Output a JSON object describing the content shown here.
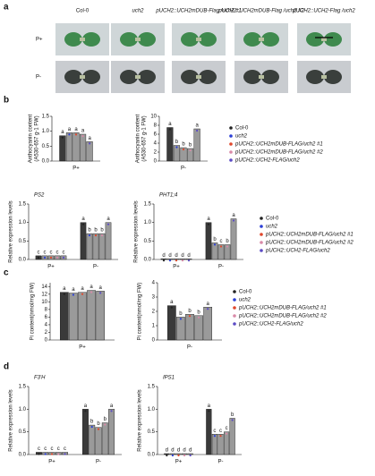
{
  "panel_labels": [
    "a",
    "b",
    "c",
    "d"
  ],
  "photos": {
    "columns": [
      "Col-0",
      "uch2",
      "pUCH2::UCH2mDUB-Flag /uch2 #1",
      "pUCH2::UCH2mDUB-Flag /uch2 #2",
      "pUCH2::UCH2-Flag /uch2"
    ],
    "rows": [
      "P+",
      "P-"
    ]
  },
  "chart_data": [
    {
      "type": "bar",
      "ylabel": [
        "Anthocyanin content",
        "(A530-657 g-1 FW)"
      ],
      "categories": [
        "P+"
      ],
      "ylim": [
        0,
        1.5
      ],
      "yticks": [
        {
          "value": 0,
          "label": "0.0"
        },
        0.5,
        {
          "value": 1,
          "label": "1.0"
        },
        1.5
      ],
      "series": [
        {
          "color": "#222222",
          "values": [
            0.85
          ],
          "letters": [
            "a"
          ]
        },
        {
          "color": "#2b3fd6",
          "values": [
            0.95
          ],
          "letters": [
            "a"
          ]
        },
        {
          "color": "#e0472b",
          "values": [
            0.95
          ],
          "letters": [
            "a"
          ]
        },
        {
          "color": "#d98aa8",
          "values": [
            0.9
          ],
          "letters": [
            "a"
          ]
        },
        {
          "color": "#5b4bc4",
          "values": [
            0.65
          ],
          "letters": [
            "a"
          ]
        }
      ]
    },
    {
      "type": "bar",
      "ylabel": [
        "Anthocyanin content",
        "(A530-657 g-1 FW)"
      ],
      "categories": [
        "P-"
      ],
      "ylim": [
        0,
        10
      ],
      "yticks": [
        0,
        2,
        4,
        6,
        8,
        10
      ],
      "legend": true,
      "series": [
        {
          "name": "Col-0",
          "color": "#222222",
          "values": [
            7.5
          ],
          "letters": [
            "a"
          ]
        },
        {
          "name": "uch2",
          "color": "#2b3fd6",
          "values": [
            3.5
          ],
          "letters": [
            "b"
          ]
        },
        {
          "name": "pUCH2::UCH2mDUB-FLAG/uch2 #1",
          "color": "#e0472b",
          "values": [
            3.0
          ],
          "letters": [
            "b"
          ]
        },
        {
          "name": "pUCH2::UCH2mDUB-FLAG/uch2 #2",
          "color": "#d98aa8",
          "values": [
            2.8
          ],
          "letters": [
            "b"
          ]
        },
        {
          "name": "pUCH2::UCH2-FLAG/uch2",
          "color": "#5b4bc4",
          "values": [
            7.2
          ],
          "letters": [
            "a"
          ]
        }
      ]
    },
    {
      "type": "bar",
      "title": "PS2",
      "ylabel": [
        "Relative expression levels"
      ],
      "categories": [
        "P+",
        "P-"
      ],
      "ylim": [
        0,
        1.5
      ],
      "yticks": [
        {
          "value": 0,
          "label": "0.0"
        },
        0.5,
        {
          "value": 1,
          "label": "1.0"
        },
        1.5
      ],
      "series": [
        {
          "color": "#222222",
          "values": [
            0.1,
            1.0
          ],
          "letters": [
            "c",
            "a"
          ]
        },
        {
          "color": "#2b3fd6",
          "values": [
            0.1,
            0.7
          ],
          "letters": [
            "c",
            "b"
          ]
        },
        {
          "color": "#e0472b",
          "values": [
            0.1,
            0.7
          ],
          "letters": [
            "c",
            "b"
          ]
        },
        {
          "color": "#d98aa8",
          "values": [
            0.1,
            0.7
          ],
          "letters": [
            "c",
            "b"
          ]
        },
        {
          "color": "#5b4bc4",
          "values": [
            0.1,
            1.0
          ],
          "letters": [
            "c",
            "a"
          ]
        }
      ]
    },
    {
      "type": "bar",
      "title": "PHT1;4",
      "ylabel": [
        "Relative expression levels"
      ],
      "categories": [
        "P+",
        "P-"
      ],
      "ylim": [
        0,
        1.5
      ],
      "yticks": [
        {
          "value": 0,
          "label": "0.0"
        },
        0.5,
        {
          "value": 1,
          "label": "1.0"
        },
        1.5
      ],
      "legend": true,
      "series": [
        {
          "name": "Col-0",
          "color": "#222222",
          "values": [
            0.02,
            1.0
          ],
          "letters": [
            "d",
            "a"
          ]
        },
        {
          "name": "uch2",
          "color": "#2b3fd6",
          "values": [
            0.02,
            0.45
          ],
          "letters": [
            "d",
            "b"
          ]
        },
        {
          "name": "pUCH2::UCH2mDUB-FLAG/uch2 #1",
          "color": "#e0472b",
          "values": [
            0.02,
            0.4
          ],
          "letters": [
            "d",
            "c"
          ]
        },
        {
          "name": "pUCH2::UCH2mDUB-FLAG/uch2 #2",
          "color": "#d98aa8",
          "values": [
            0.02,
            0.4
          ],
          "letters": [
            "d",
            "b"
          ]
        },
        {
          "name": "pUCH2::UCH2-FLAG/uch2",
          "color": "#5b4bc4",
          "values": [
            0.02,
            1.1
          ],
          "letters": [
            "d",
            "a"
          ]
        }
      ]
    },
    {
      "type": "bar",
      "ylabel": [
        "Pi content(nmol/mg FW)"
      ],
      "categories": [
        "P+"
      ],
      "ylim": [
        0,
        15
      ],
      "yticks": [
        0,
        2,
        4,
        6,
        8,
        10,
        12,
        14
      ],
      "series": [
        {
          "color": "#222222",
          "values": [
            12.5
          ],
          "letters": [
            "a"
          ]
        },
        {
          "color": "#2b3fd6",
          "values": [
            12.3
          ],
          "letters": [
            "a"
          ]
        },
        {
          "color": "#e0472b",
          "values": [
            12.5
          ],
          "letters": [
            "a"
          ]
        },
        {
          "color": "#d98aa8",
          "values": [
            13
          ],
          "letters": [
            "a"
          ]
        },
        {
          "color": "#5b4bc4",
          "values": [
            12.8
          ],
          "letters": [
            "a"
          ]
        }
      ]
    },
    {
      "type": "bar",
      "ylabel": [
        "Pi content(nmol/mg FW)"
      ],
      "categories": [
        "P-"
      ],
      "ylim": [
        0,
        4
      ],
      "yticks": [
        0,
        1,
        2,
        3,
        4
      ],
      "legend": true,
      "series": [
        {
          "name": "Col-0",
          "color": "#222222",
          "values": [
            2.4
          ],
          "letters": [
            "a"
          ]
        },
        {
          "name": "uch2",
          "color": "#2b3fd6",
          "values": [
            1.6
          ],
          "letters": [
            "b"
          ]
        },
        {
          "name": "pUCH2::UCH2mDUB-FLAG/uch2 #1",
          "color": "#e0472b",
          "values": [
            1.8
          ],
          "letters": [
            "b"
          ]
        },
        {
          "name": "pUCH2::UCH2mDUB-FLAG/uch2 #2",
          "color": "#d98aa8",
          "values": [
            1.7
          ],
          "letters": [
            "b"
          ]
        },
        {
          "name": "pUCH2::UCH2-FLAG/uch2",
          "color": "#5b4bc4",
          "values": [
            2.3
          ],
          "letters": [
            "a"
          ]
        }
      ]
    },
    {
      "type": "bar",
      "title": "F3'H",
      "ylabel": [
        "Relative expression levels"
      ],
      "categories": [
        "P+",
        "P-"
      ],
      "ylim": [
        0,
        1.5
      ],
      "yticks": [
        {
          "value": 0,
          "label": "0.0"
        },
        0.5,
        {
          "value": 1,
          "label": "1.0"
        },
        1.5
      ],
      "series": [
        {
          "color": "#222222",
          "values": [
            0.05,
            1.0
          ],
          "letters": [
            "c",
            "a"
          ]
        },
        {
          "color": "#2b3fd6",
          "values": [
            0.05,
            0.65
          ],
          "letters": [
            "c",
            "b"
          ]
        },
        {
          "color": "#e0472b",
          "values": [
            0.05,
            0.6
          ],
          "letters": [
            "c",
            "b"
          ]
        },
        {
          "color": "#d98aa8",
          "values": [
            0.05,
            0.7
          ],
          "letters": [
            "c",
            "b"
          ]
        },
        {
          "color": "#5b4bc4",
          "values": [
            0.05,
            1.0
          ],
          "letters": [
            "c",
            "a"
          ]
        }
      ]
    },
    {
      "type": "bar",
      "title": "IPS1",
      "ylabel": [
        "Relative expression levels"
      ],
      "categories": [
        "P+",
        "P-"
      ],
      "ylim": [
        0,
        1.5
      ],
      "yticks": [
        {
          "value": 0,
          "label": "0.0"
        },
        0.5,
        {
          "value": 1,
          "label": "1.0"
        },
        1.5
      ],
      "series": [
        {
          "color": "#222222",
          "values": [
            0.02,
            1.0
          ],
          "letters": [
            "d",
            "a"
          ]
        },
        {
          "color": "#2b3fd6",
          "values": [
            0.02,
            0.45
          ],
          "letters": [
            "d",
            "c"
          ]
        },
        {
          "color": "#e0472b",
          "values": [
            0.02,
            0.45
          ],
          "letters": [
            "d",
            "c"
          ]
        },
        {
          "color": "#d98aa8",
          "values": [
            0.02,
            0.5
          ],
          "letters": [
            "d",
            "c"
          ]
        },
        {
          "color": "#5b4bc4",
          "values": [
            0.02,
            0.8
          ],
          "letters": [
            "d",
            "b"
          ]
        }
      ]
    }
  ]
}
